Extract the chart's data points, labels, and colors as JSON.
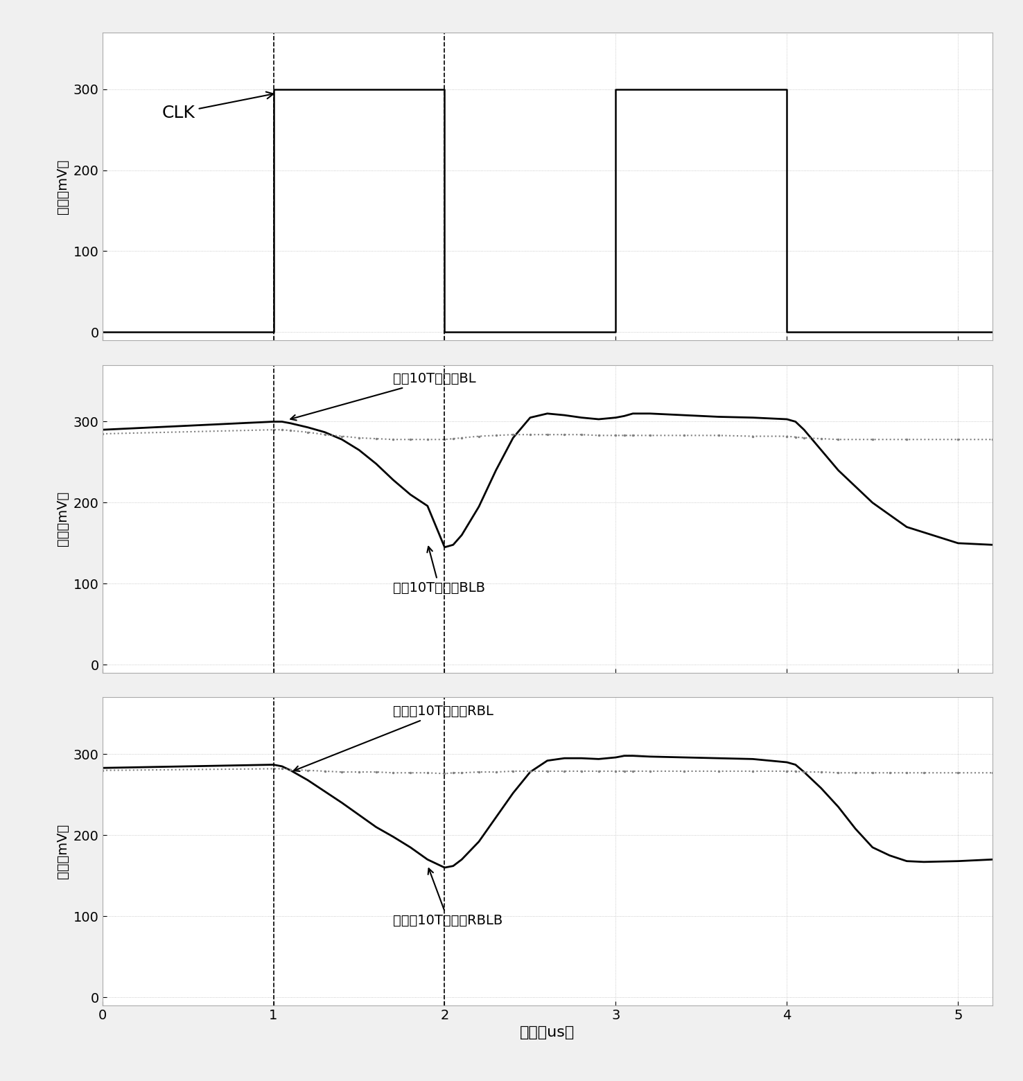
{
  "xlim": [
    0,
    5.2
  ],
  "xticks": [
    0,
    1,
    2,
    3,
    4,
    5
  ],
  "xlabel": "时间（us）",
  "ylabel": "电压（mV）",
  "bg_color": "#f0f0f0",
  "plot_bg": "#ffffff",
  "dashed_vlines": [
    1.0,
    2.0
  ],
  "clk_label": "CLK",
  "panel1": {
    "yticks": [
      0,
      100,
      200,
      300
    ],
    "ylim": [
      -10,
      370
    ],
    "clk_signal": {
      "x": [
        0,
        1.0,
        1.0,
        2.0,
        2.0,
        3.0,
        3.0,
        4.0,
        4.0,
        5.2
      ],
      "y": [
        0,
        0,
        300,
        300,
        0,
        0,
        300,
        300,
        0,
        0
      ]
    }
  },
  "panel2": {
    "yticks": [
      0,
      100,
      200,
      300
    ],
    "ylim": [
      -10,
      370
    ],
    "label_BL": "参考10T的位线BL",
    "label_BLB": "参考10T的位线BLB",
    "BL": {
      "x": [
        0,
        1.0,
        1.05,
        1.1,
        1.2,
        1.3,
        1.4,
        1.5,
        1.6,
        1.7,
        1.8,
        1.9,
        2.0,
        2.05,
        2.1,
        2.2,
        2.3,
        2.4,
        2.5,
        2.6,
        2.7,
        2.8,
        2.9,
        3.0,
        3.05,
        3.1,
        3.2,
        3.4,
        3.6,
        3.8,
        4.0,
        4.05,
        4.1,
        4.2,
        4.3,
        4.5,
        4.7,
        5.0,
        5.2
      ],
      "y": [
        290,
        300,
        300,
        298,
        293,
        287,
        278,
        265,
        248,
        228,
        210,
        196,
        145,
        148,
        160,
        195,
        240,
        280,
        305,
        310,
        308,
        305,
        303,
        305,
        307,
        310,
        310,
        308,
        306,
        305,
        303,
        300,
        290,
        265,
        240,
        200,
        170,
        150,
        148
      ]
    },
    "BLB": {
      "x": [
        0,
        1.0,
        1.05,
        1.1,
        1.2,
        1.3,
        1.4,
        1.5,
        1.6,
        1.7,
        1.8,
        1.9,
        2.0,
        2.05,
        2.1,
        2.2,
        2.3,
        2.4,
        2.5,
        2.6,
        2.7,
        2.8,
        2.9,
        3.0,
        3.05,
        3.1,
        3.2,
        3.4,
        3.6,
        3.8,
        4.0,
        4.05,
        4.1,
        4.2,
        4.3,
        4.5,
        4.7,
        5.0,
        5.2
      ],
      "y": [
        285,
        290,
        290,
        289,
        287,
        284,
        282,
        280,
        279,
        278,
        278,
        278,
        278,
        279,
        280,
        282,
        283,
        284,
        284,
        284,
        284,
        284,
        283,
        283,
        283,
        283,
        283,
        283,
        283,
        282,
        282,
        281,
        280,
        279,
        278,
        278,
        278,
        278,
        278
      ]
    }
  },
  "panel3": {
    "yticks": [
      0,
      100,
      200,
      300
    ],
    "ylim": [
      -10,
      370
    ],
    "label_RBL": "本发明10T的位线RBL",
    "label_RBLB": "本发明10T的位线RBLB",
    "RBL": {
      "x": [
        0,
        1.0,
        1.05,
        1.1,
        1.2,
        1.3,
        1.4,
        1.5,
        1.6,
        1.7,
        1.8,
        1.9,
        2.0,
        2.05,
        2.1,
        2.2,
        2.3,
        2.4,
        2.5,
        2.6,
        2.7,
        2.8,
        2.9,
        3.0,
        3.05,
        3.1,
        3.2,
        3.4,
        3.6,
        3.8,
        4.0,
        4.05,
        4.1,
        4.2,
        4.3,
        4.4,
        4.5,
        4.6,
        4.7,
        4.8,
        5.0,
        5.2
      ],
      "y": [
        283,
        287,
        285,
        280,
        268,
        254,
        240,
        225,
        210,
        198,
        185,
        170,
        160,
        162,
        170,
        192,
        222,
        252,
        278,
        292,
        295,
        295,
        294,
        296,
        298,
        298,
        297,
        296,
        295,
        294,
        290,
        287,
        278,
        258,
        235,
        208,
        185,
        175,
        168,
        167,
        168,
        170
      ]
    },
    "RBLB": {
      "x": [
        0,
        1.0,
        1.05,
        1.1,
        1.2,
        1.3,
        1.4,
        1.5,
        1.6,
        1.7,
        1.8,
        1.9,
        2.0,
        2.05,
        2.1,
        2.2,
        2.3,
        2.4,
        2.5,
        2.6,
        2.7,
        2.8,
        2.9,
        3.0,
        3.05,
        3.1,
        3.2,
        3.4,
        3.6,
        3.8,
        4.0,
        4.05,
        4.1,
        4.2,
        4.3,
        4.4,
        4.5,
        4.6,
        4.7,
        4.8,
        5.0,
        5.2
      ],
      "y": [
        280,
        282,
        282,
        281,
        280,
        279,
        278,
        278,
        278,
        277,
        277,
        277,
        276,
        277,
        277,
        278,
        278,
        279,
        279,
        279,
        279,
        279,
        279,
        279,
        279,
        279,
        279,
        279,
        279,
        279,
        279,
        279,
        278,
        278,
        277,
        277,
        277,
        277,
        277,
        277,
        277,
        277
      ]
    }
  }
}
